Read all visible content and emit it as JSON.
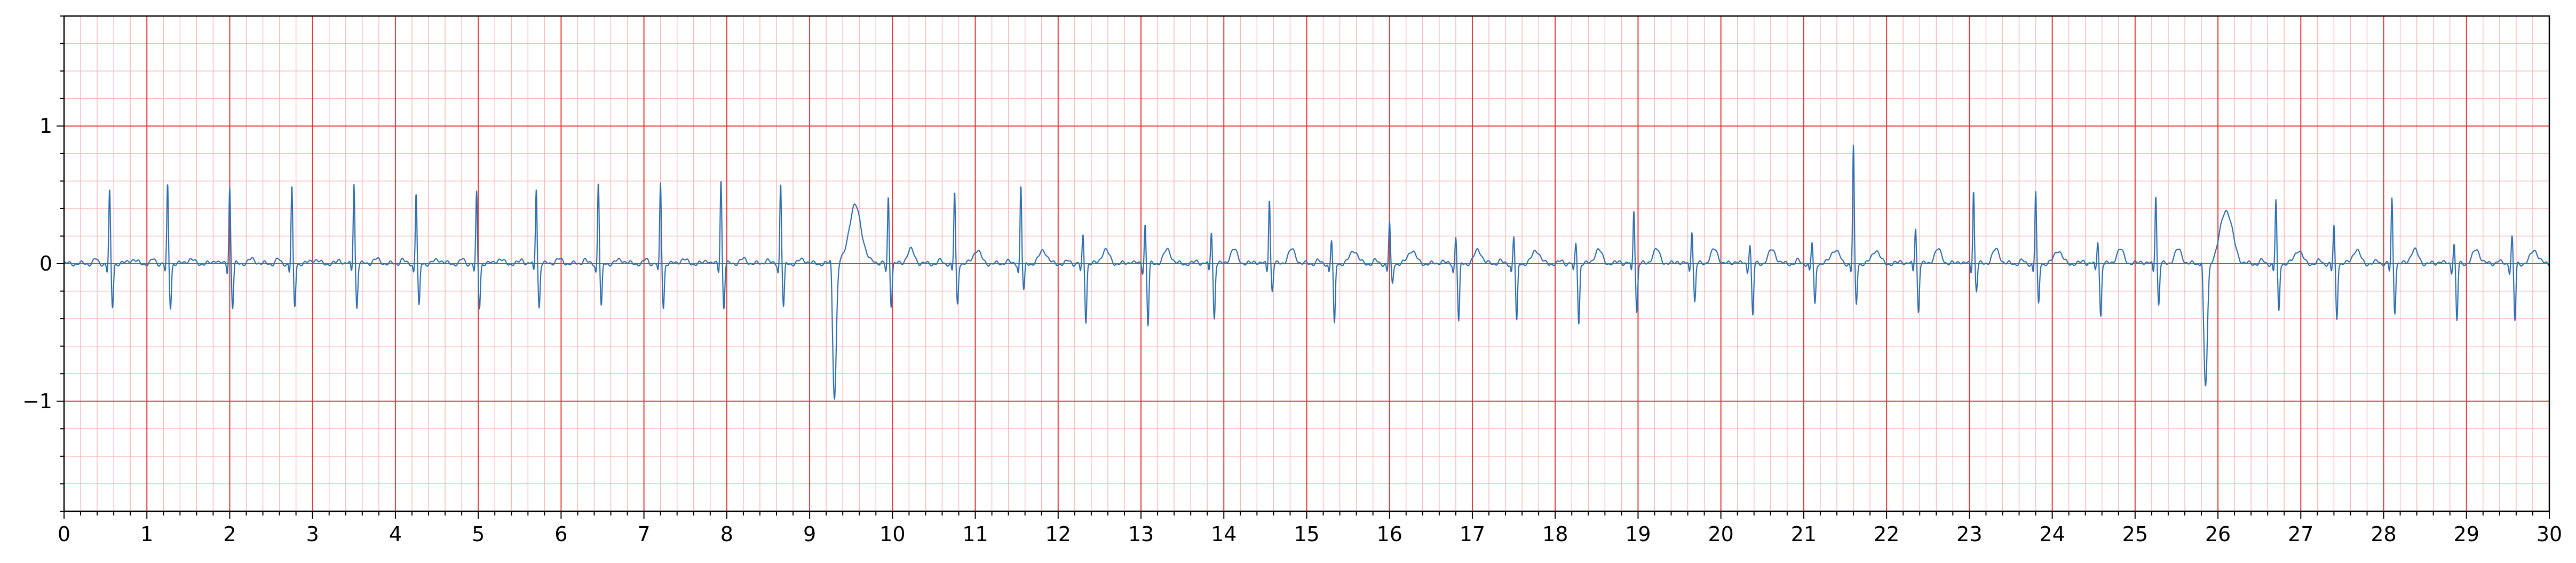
{
  "chart_data": {
    "type": "line",
    "title": "",
    "xlabel": "",
    "ylabel": "",
    "xlim": [
      0,
      30
    ],
    "ylim": [
      -1.8,
      1.8
    ],
    "x_ticks": [
      "0",
      "1",
      "2",
      "3",
      "4",
      "5",
      "6",
      "7",
      "8",
      "9",
      "10",
      "11",
      "12",
      "13",
      "14",
      "15",
      "16",
      "17",
      "18",
      "19",
      "20",
      "21",
      "22",
      "23",
      "24",
      "25",
      "26",
      "27",
      "28",
      "29",
      "30"
    ],
    "y_ticks": [
      {
        "value": 1,
        "label": "1"
      },
      {
        "value": 0,
        "label": "0"
      },
      {
        "value": -1,
        "label": "−1"
      }
    ],
    "grid": {
      "major_step_x": 1,
      "minor_step_x": 0.2,
      "major_step_y": 1,
      "minor_step_y": 0.2
    },
    "colors": {
      "major_grid": "#e53935",
      "minor_grid": "#f8b8b8",
      "trace": "#2f6fb0",
      "axes": "#000000"
    },
    "series": [
      {
        "beats_phase1": {
          "times": [
            0.55,
            1.25,
            2.0,
            2.75,
            3.5,
            4.25,
            4.98,
            5.7,
            6.45,
            7.2,
            7.93,
            8.65
          ],
          "r_peaks": [
            0.53,
            0.57,
            0.56,
            0.56,
            0.59,
            0.52,
            0.51,
            0.55,
            0.6,
            0.58,
            0.62,
            0.59
          ]
        },
        "pvc_events": [
          {
            "t": 9.3,
            "s_min": -0.97,
            "peak": 0.42
          },
          {
            "t": 25.85,
            "s_min": -0.9,
            "peak": 0.39
          }
        ],
        "beats_phase2": {
          "times": [
            9.95,
            10.75,
            11.55,
            12.3,
            13.05,
            13.85,
            14.55,
            15.3,
            16.0,
            16.8,
            17.5,
            18.25,
            18.95,
            19.65,
            20.35,
            21.1,
            21.6,
            22.35,
            23.05,
            23.8,
            24.55,
            25.25,
            26.7,
            27.4,
            28.1,
            28.85,
            29.55
          ],
          "r_peaks": [
            0.49,
            0.52,
            0.57,
            0.2,
            0.29,
            0.24,
            0.48,
            0.17,
            0.3,
            0.2,
            0.2,
            0.15,
            0.4,
            0.25,
            0.15,
            0.15,
            0.85,
            0.27,
            0.54,
            0.52,
            0.17,
            0.51,
            0.46,
            0.27,
            0.47,
            0.15,
            0.2
          ],
          "s_troughs": [
            -0.3,
            -0.3,
            -0.2,
            -0.42,
            -0.45,
            -0.4,
            -0.2,
            -0.45,
            -0.15,
            -0.43,
            -0.43,
            -0.43,
            -0.35,
            -0.28,
            -0.38,
            -0.3,
            -0.3,
            -0.35,
            -0.2,
            -0.3,
            -0.38,
            -0.3,
            -0.35,
            -0.4,
            -0.35,
            -0.42,
            -0.42
          ]
        }
      }
    ]
  }
}
